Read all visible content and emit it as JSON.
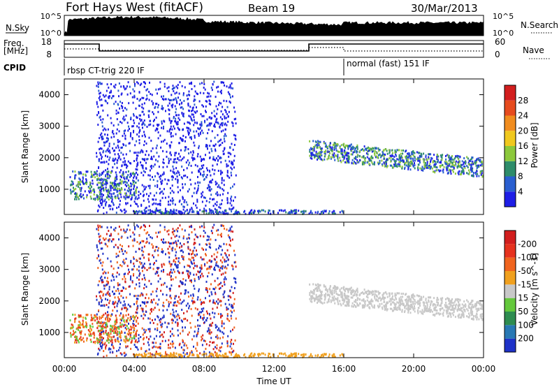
{
  "header": {
    "title": "Fort Hays West (fitACF)",
    "beam": "Beam 19",
    "date": "30/Mar/2013"
  },
  "noise_panel": {
    "left_label": "N.Sky",
    "right_label": "N.Search",
    "tick_top": "10^5",
    "tick_bottom": "10^0",
    "right_tick_top": "10^5",
    "right_tick_bottom": "10^0"
  },
  "freq_panel": {
    "left_label_1": "Freq.",
    "left_label_2": "[MHz]",
    "left_ticks": [
      "18",
      "8"
    ],
    "right_label": "Nave",
    "right_ticks": [
      "60",
      "0"
    ]
  },
  "cpid": {
    "label": "CPID",
    "modes": [
      "rbsp CT-trig 220 IF",
      "normal (fast) 151 IF"
    ]
  },
  "chart_data": [
    {
      "type": "heatmap",
      "name": "power-panel",
      "ylabel": "Slant Range [km]",
      "ylim": [
        200,
        4500
      ],
      "yticks": [
        1000,
        2000,
        3000,
        4000
      ],
      "xlim_hours": [
        0,
        24
      ],
      "colorbar": {
        "label": "Power [dB]",
        "ticks": [
          "4",
          "8",
          "12",
          "16",
          "20",
          "24",
          "28"
        ],
        "colors": [
          "#1e1ee6",
          "#2a5fd0",
          "#2e8c6a",
          "#8cc83c",
          "#f0c81e",
          "#f08c1e",
          "#e64b1e",
          "#d21e1e"
        ]
      }
    },
    {
      "type": "heatmap",
      "name": "velocity-panel",
      "ylabel": "Slant Range [km]",
      "ylim": [
        200,
        4500
      ],
      "yticks": [
        1000,
        2000,
        3000,
        4000
      ],
      "xlim_hours": [
        0,
        24
      ],
      "colorbar": {
        "label": "Velocity [m s^-1]",
        "ticks": [
          "200",
          "100",
          "50",
          "15",
          "-15",
          "-50",
          "-100",
          "-200"
        ],
        "colors": [
          "#1e32c8",
          "#2878b4",
          "#2e8c50",
          "#64c83c",
          "#c8c8c8",
          "#f0a01e",
          "#f0641e",
          "#e6321e",
          "#d21e1e"
        ]
      }
    }
  ],
  "xaxis": {
    "label": "Time UT",
    "ticks": [
      "00:00",
      "04:00",
      "08:00",
      "12:00",
      "16:00",
      "20:00",
      "00:00"
    ]
  }
}
